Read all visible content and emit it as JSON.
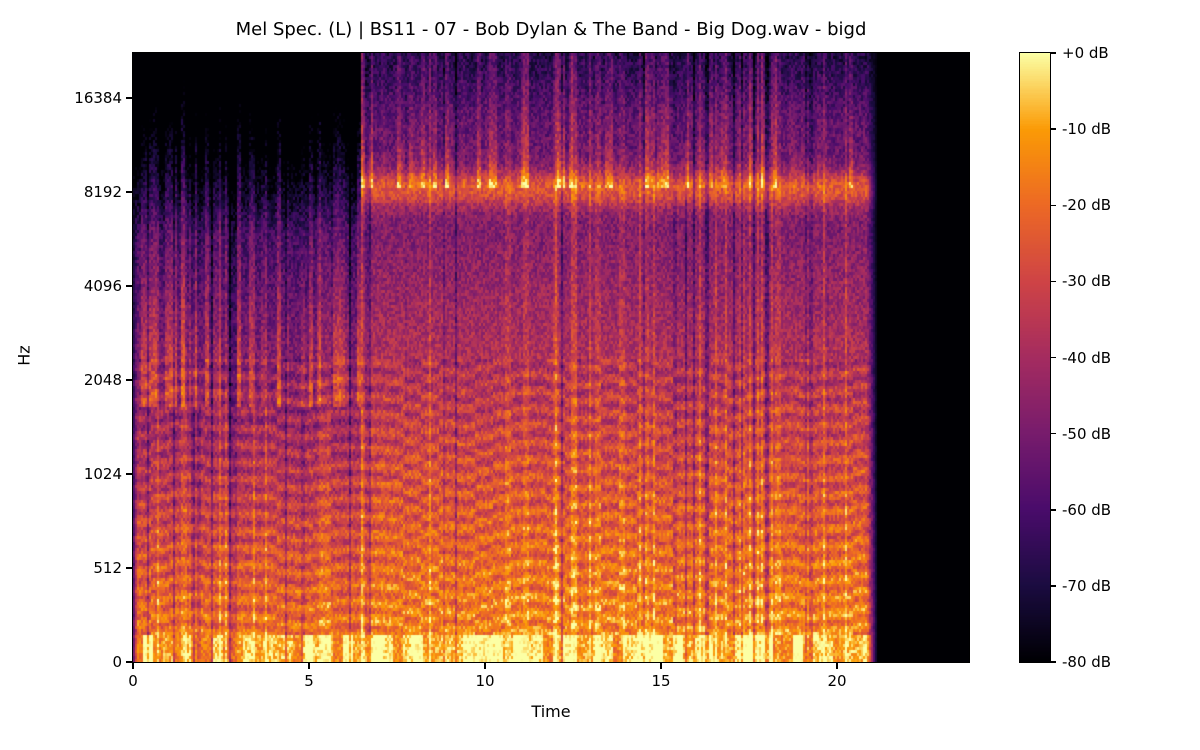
{
  "figure": {
    "title": "Mel Spec. (L) | BS11 - 07 - Bob Dylan & The Band - Big Dog.wav - bigd",
    "background": "#ffffff"
  },
  "axes": {
    "x": {
      "label": "Time",
      "ticks": [
        "0",
        "5",
        "10",
        "15",
        "20"
      ],
      "tick_values": [
        0,
        5,
        10,
        15,
        20
      ],
      "range": [
        0,
        23.75
      ]
    },
    "y": {
      "label": "Hz",
      "ticks": [
        "16384",
        "8192",
        "4096",
        "2048",
        "1024",
        "512",
        "0"
      ],
      "tick_values_hz": [
        16384,
        8192,
        4096,
        2048,
        1024,
        512,
        0
      ],
      "scale": "mel"
    }
  },
  "colorbar": {
    "ticks": [
      "+0 dB",
      "-10 dB",
      "-20 dB",
      "-30 dB",
      "-40 dB",
      "-50 dB",
      "-60 dB",
      "-70 dB",
      "-80 dB"
    ],
    "tick_values_db": [
      0,
      -10,
      -20,
      -30,
      -40,
      -50,
      -60,
      -70,
      -80
    ],
    "colormap": "inferno",
    "anchors": [
      [
        0.0,
        "#000004"
      ],
      [
        0.125,
        "#1b0c41"
      ],
      [
        0.25,
        "#4a0c6b"
      ],
      [
        0.375,
        "#781c6d"
      ],
      [
        0.5,
        "#a52c60"
      ],
      [
        0.625,
        "#cf4446"
      ],
      [
        0.75,
        "#ed6925"
      ],
      [
        0.875,
        "#fb9b06"
      ],
      [
        1.0,
        "#fcffa4"
      ]
    ]
  },
  "chart_data": {
    "type": "heatmap",
    "subtype": "mel-spectrogram",
    "title": "Mel Spec. (L) | BS11 - 07 - Bob Dylan & The Band - Big Dog.wav - bigd",
    "xlabel": "Time",
    "ylabel": "Hz",
    "x_range_s": [
      0,
      23.75
    ],
    "content_span_s": [
      0,
      21.15
    ],
    "y_ticks_hz": [
      0,
      512,
      1024,
      2048,
      4096,
      8192,
      16384
    ],
    "db_range": [
      -80,
      0
    ],
    "colormap": "inferno",
    "bass_band_db": -5,
    "segments": [
      {
        "name": "intro-sparse-highs",
        "t0": 0.0,
        "t1": 6.45,
        "low_db": -18,
        "mid_db": -45,
        "high_db": -72,
        "top_activity": 0.35
      },
      {
        "name": "full-band-music",
        "t0": 6.45,
        "t1": 21.15,
        "low_db": -14,
        "mid_db": -35,
        "high_db": -55,
        "top_activity": 0.65,
        "band_8k_db": -25
      },
      {
        "name": "silence",
        "t0": 21.15,
        "t1": 23.75,
        "low_db": -80,
        "mid_db": -80,
        "high_db": -80,
        "top_activity": 0.0
      }
    ]
  }
}
